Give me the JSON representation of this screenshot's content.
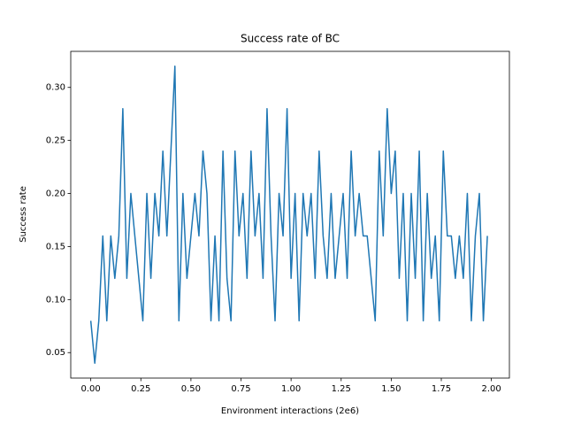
{
  "chart_data": {
    "type": "line",
    "title": "Success rate of BC",
    "xlabel": "Environment interactions (2e6)",
    "ylabel": "Success rate",
    "x": [
      0,
      0.02,
      0.04,
      0.06,
      0.08,
      0.1,
      0.12,
      0.14,
      0.16,
      0.18,
      0.2,
      0.22,
      0.24,
      0.26,
      0.28,
      0.3,
      0.32,
      0.34,
      0.36,
      0.38,
      0.4,
      0.42,
      0.44,
      0.46,
      0.48,
      0.5,
      0.52,
      0.54,
      0.56,
      0.58,
      0.6,
      0.62,
      0.64,
      0.66,
      0.68,
      0.7,
      0.72,
      0.74,
      0.76,
      0.78,
      0.8,
      0.82,
      0.84,
      0.86,
      0.88,
      0.9,
      0.92,
      0.94,
      0.96,
      0.98,
      1,
      1.02,
      1.04,
      1.06,
      1.08,
      1.1,
      1.12,
      1.14,
      1.16,
      1.18,
      1.2,
      1.22,
      1.24,
      1.26,
      1.28,
      1.3,
      1.32,
      1.34,
      1.36,
      1.38,
      1.4,
      1.42,
      1.44,
      1.46,
      1.48,
      1.5,
      1.52,
      1.54,
      1.56,
      1.58,
      1.6,
      1.62,
      1.64,
      1.66,
      1.68,
      1.7,
      1.72,
      1.74,
      1.76,
      1.78,
      1.8,
      1.82,
      1.84,
      1.86,
      1.88,
      1.9,
      1.92,
      1.94,
      1.96,
      1.98
    ],
    "series": [
      {
        "color": "#1f77b4",
        "values": [
          0.08,
          0.04,
          0.08,
          0.16,
          0.08,
          0.16,
          0.12,
          0.16,
          0.28,
          0.12,
          0.2,
          0.16,
          0.12,
          0.08,
          0.2,
          0.12,
          0.2,
          0.16,
          0.24,
          0.16,
          0.24,
          0.32,
          0.08,
          0.2,
          0.12,
          0.16,
          0.2,
          0.16,
          0.24,
          0.2,
          0.08,
          0.16,
          0.08,
          0.24,
          0.12,
          0.08,
          0.24,
          0.16,
          0.2,
          0.12,
          0.24,
          0.16,
          0.2,
          0.12,
          0.28,
          0.16,
          0.08,
          0.2,
          0.16,
          0.28,
          0.12,
          0.2,
          0.08,
          0.2,
          0.16,
          0.2,
          0.12,
          0.24,
          0.16,
          0.12,
          0.2,
          0.12,
          0.16,
          0.2,
          0.12,
          0.24,
          0.16,
          0.2,
          0.16,
          0.16,
          0.12,
          0.08,
          0.24,
          0.16,
          0.28,
          0.2,
          0.24,
          0.12,
          0.2,
          0.08,
          0.2,
          0.12,
          0.24,
          0.08,
          0.2,
          0.12,
          0.16,
          0.08,
          0.24,
          0.16,
          0.16,
          0.12,
          0.16,
          0.12,
          0.2,
          0.08,
          0.16,
          0.2,
          0.08,
          0.16
        ]
      }
    ],
    "xlim": [
      -0.1,
      2.09
    ],
    "ylim": [
      0.026,
      0.334
    ],
    "xticks": [
      {
        "value": 0,
        "label": "0.00"
      },
      0.25,
      {
        "value": 0.5,
        "label": "0.50"
      },
      0.75,
      {
        "value": 1,
        "label": "1.00"
      },
      1.25,
      {
        "value": 1.5,
        "label": "1.50"
      },
      1.75,
      {
        "value": 2,
        "label": "2.00"
      }
    ],
    "yticks": [
      0.05,
      {
        "value": 0.1,
        "label": "0.10"
      },
      0.15,
      {
        "value": 0.2,
        "label": "0.20"
      },
      0.25,
      {
        "value": 0.3,
        "label": "0.30"
      }
    ]
  }
}
